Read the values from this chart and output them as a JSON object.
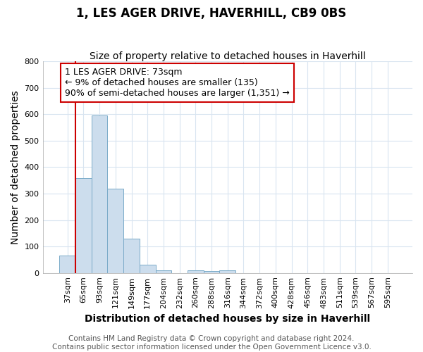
{
  "title": "1, LES AGER DRIVE, HAVERHILL, CB9 0BS",
  "subtitle": "Size of property relative to detached houses in Haverhill",
  "xlabel": "Distribution of detached houses by size in Haverhill",
  "ylabel": "Number of detached properties",
  "footnote": "Contains HM Land Registry data © Crown copyright and database right 2024.\nContains public sector information licensed under the Open Government Licence v3.0.",
  "bin_labels": [
    "37sqm",
    "65sqm",
    "93sqm",
    "121sqm",
    "149sqm",
    "177sqm",
    "204sqm",
    "232sqm",
    "260sqm",
    "288sqm",
    "316sqm",
    "344sqm",
    "372sqm",
    "400sqm",
    "428sqm",
    "456sqm",
    "483sqm",
    "511sqm",
    "539sqm",
    "567sqm",
    "595sqm"
  ],
  "bar_heights": [
    65,
    358,
    595,
    318,
    130,
    30,
    10,
    0,
    10,
    8,
    10,
    0,
    0,
    0,
    0,
    0,
    0,
    0,
    0,
    0,
    0
  ],
  "bar_color": "#ccdded",
  "bar_edge_color": "#7aaac8",
  "vline_x_index": 1,
  "vline_color": "#cc0000",
  "annotation_text": "1 LES AGER DRIVE: 73sqm\n← 9% of detached houses are smaller (135)\n90% of semi-detached houses are larger (1,351) →",
  "annotation_box_color": "white",
  "annotation_box_edge_color": "#cc0000",
  "ylim": [
    0,
    800
  ],
  "yticks": [
    0,
    100,
    200,
    300,
    400,
    500,
    600,
    700,
    800
  ],
  "bg_color": "#ffffff",
  "plot_bg_color": "#ffffff",
  "grid_color": "#d8e4f0",
  "title_fontsize": 12,
  "subtitle_fontsize": 10,
  "axis_label_fontsize": 10,
  "tick_fontsize": 8,
  "annotation_fontsize": 9,
  "footnote_fontsize": 7.5
}
